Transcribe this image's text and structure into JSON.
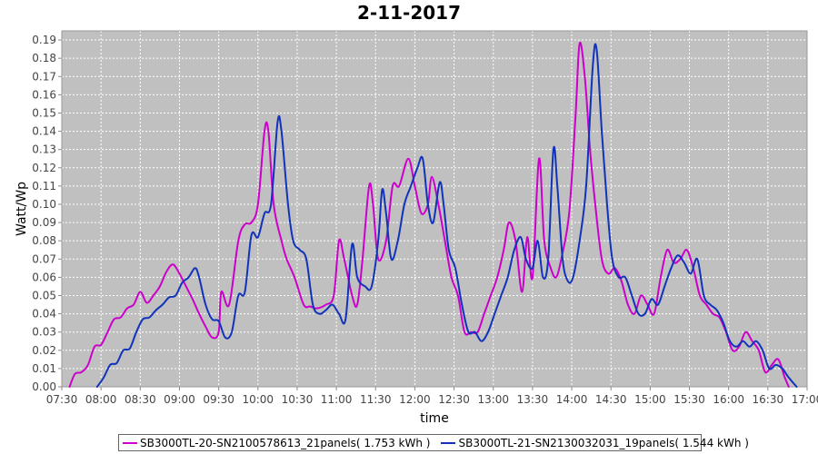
{
  "chart_data": {
    "type": "line",
    "title": "2-11-2017",
    "xlabel": "time",
    "ylabel": "Watt/Wp",
    "xlim": [
      "07:30",
      "17:00"
    ],
    "ylim": [
      0,
      0.195
    ],
    "x_ticks": [
      "07:30",
      "08:00",
      "08:30",
      "09:00",
      "09:30",
      "10:00",
      "10:30",
      "11:00",
      "11:30",
      "12:00",
      "12:30",
      "13:00",
      "13:30",
      "14:00",
      "14:30",
      "15:00",
      "15:30",
      "16:00",
      "16:30",
      "17:00"
    ],
    "y_ticks": [
      0.0,
      0.01,
      0.02,
      0.03,
      0.04,
      0.05,
      0.06,
      0.07,
      0.08,
      0.09,
      0.1,
      0.11,
      0.12,
      0.13,
      0.14,
      0.15,
      0.16,
      0.17,
      0.18,
      0.19
    ],
    "y_tick_labels": [
      "0.00",
      "0.01",
      "0.02",
      "0.03",
      "0.04",
      "0.05",
      "0.06",
      "0.07",
      "0.08",
      "0.09",
      "0.10",
      "0.11",
      "0.12",
      "0.13",
      "0.14",
      "0.15",
      "0.16",
      "0.17",
      "0.18",
      "0.19"
    ],
    "grid": true,
    "legend_position": "bottom",
    "series": [
      {
        "name": "SB3000TL-20-SN2100578613_21panels( 1.753 kWh )",
        "color": "#cc00cc",
        "points": [
          [
            "07:36",
            0.0
          ],
          [
            "07:40",
            0.007
          ],
          [
            "07:45",
            0.008
          ],
          [
            "07:50",
            0.012
          ],
          [
            "07:55",
            0.022
          ],
          [
            "08:00",
            0.023
          ],
          [
            "08:05",
            0.03
          ],
          [
            "08:10",
            0.037
          ],
          [
            "08:15",
            0.038
          ],
          [
            "08:20",
            0.043
          ],
          [
            "08:25",
            0.045
          ],
          [
            "08:30",
            0.052
          ],
          [
            "08:35",
            0.046
          ],
          [
            "08:40",
            0.05
          ],
          [
            "08:45",
            0.055
          ],
          [
            "08:50",
            0.063
          ],
          [
            "08:55",
            0.067
          ],
          [
            "09:00",
            0.062
          ],
          [
            "09:05",
            0.055
          ],
          [
            "09:10",
            0.048
          ],
          [
            "09:15",
            0.04
          ],
          [
            "09:20",
            0.033
          ],
          [
            "09:25",
            0.027
          ],
          [
            "09:30",
            0.03
          ],
          [
            "09:32",
            0.052
          ],
          [
            "09:38",
            0.045
          ],
          [
            "09:45",
            0.08
          ],
          [
            "09:50",
            0.089
          ],
          [
            "09:55",
            0.09
          ],
          [
            "10:00",
            0.1
          ],
          [
            "10:05",
            0.14
          ],
          [
            "10:08",
            0.14
          ],
          [
            "10:12",
            0.1
          ],
          [
            "10:18",
            0.08
          ],
          [
            "10:22",
            0.07
          ],
          [
            "10:28",
            0.06
          ],
          [
            "10:35",
            0.045
          ],
          [
            "10:40",
            0.044
          ],
          [
            "10:45",
            0.043
          ],
          [
            "10:52",
            0.045
          ],
          [
            "10:58",
            0.05
          ],
          [
            "11:02",
            0.08
          ],
          [
            "11:06",
            0.07
          ],
          [
            "11:12",
            0.05
          ],
          [
            "11:16",
            0.045
          ],
          [
            "11:20",
            0.07
          ],
          [
            "11:25",
            0.11
          ],
          [
            "11:28",
            0.1
          ],
          [
            "11:32",
            0.07
          ],
          [
            "11:38",
            0.08
          ],
          [
            "11:43",
            0.11
          ],
          [
            "11:48",
            0.11
          ],
          [
            "11:55",
            0.125
          ],
          [
            "12:00",
            0.11
          ],
          [
            "12:05",
            0.095
          ],
          [
            "12:10",
            0.1
          ],
          [
            "12:13",
            0.115
          ],
          [
            "12:18",
            0.1
          ],
          [
            "12:23",
            0.08
          ],
          [
            "12:28",
            0.06
          ],
          [
            "12:33",
            0.05
          ],
          [
            "12:38",
            0.03
          ],
          [
            "12:43",
            0.03
          ],
          [
            "12:48",
            0.03
          ],
          [
            "12:53",
            0.04
          ],
          [
            "12:58",
            0.05
          ],
          [
            "13:03",
            0.06
          ],
          [
            "13:08",
            0.075
          ],
          [
            "13:12",
            0.09
          ],
          [
            "13:17",
            0.08
          ],
          [
            "13:22",
            0.052
          ],
          [
            "13:26",
            0.082
          ],
          [
            "13:30",
            0.06
          ],
          [
            "13:35",
            0.125
          ],
          [
            "13:39",
            0.08
          ],
          [
            "13:44",
            0.065
          ],
          [
            "13:48",
            0.06
          ],
          [
            "13:52",
            0.07
          ],
          [
            "13:58",
            0.095
          ],
          [
            "14:03",
            0.15
          ],
          [
            "14:06",
            0.188
          ],
          [
            "14:10",
            0.17
          ],
          [
            "14:14",
            0.13
          ],
          [
            "14:18",
            0.1
          ],
          [
            "14:23",
            0.07
          ],
          [
            "14:28",
            0.062
          ],
          [
            "14:33",
            0.065
          ],
          [
            "14:38",
            0.058
          ],
          [
            "14:43",
            0.045
          ],
          [
            "14:48",
            0.04
          ],
          [
            "14:53",
            0.05
          ],
          [
            "14:58",
            0.045
          ],
          [
            "15:03",
            0.04
          ],
          [
            "15:08",
            0.06
          ],
          [
            "15:13",
            0.075
          ],
          [
            "15:18",
            0.068
          ],
          [
            "15:23",
            0.07
          ],
          [
            "15:28",
            0.075
          ],
          [
            "15:33",
            0.065
          ],
          [
            "15:38",
            0.05
          ],
          [
            "15:43",
            0.045
          ],
          [
            "15:48",
            0.04
          ],
          [
            "15:53",
            0.038
          ],
          [
            "15:58",
            0.03
          ],
          [
            "16:03",
            0.02
          ],
          [
            "16:08",
            0.022
          ],
          [
            "16:13",
            0.03
          ],
          [
            "16:18",
            0.025
          ],
          [
            "16:23",
            0.02
          ],
          [
            "16:28",
            0.008
          ],
          [
            "16:33",
            0.012
          ],
          [
            "16:38",
            0.015
          ],
          [
            "16:43",
            0.005
          ],
          [
            "16:46",
            0.0
          ]
        ]
      },
      {
        "name": "SB3000TL-21-SN2130032031_19panels( 1.544 kWh )",
        "color": "#1133bb",
        "points": [
          [
            "07:57",
            0.0
          ],
          [
            "08:02",
            0.005
          ],
          [
            "08:07",
            0.012
          ],
          [
            "08:12",
            0.013
          ],
          [
            "08:17",
            0.02
          ],
          [
            "08:22",
            0.021
          ],
          [
            "08:27",
            0.03
          ],
          [
            "08:32",
            0.037
          ],
          [
            "08:37",
            0.038
          ],
          [
            "08:42",
            0.042
          ],
          [
            "08:47",
            0.045
          ],
          [
            "08:52",
            0.049
          ],
          [
            "08:57",
            0.05
          ],
          [
            "09:02",
            0.057
          ],
          [
            "09:07",
            0.06
          ],
          [
            "09:12",
            0.065
          ],
          [
            "09:15",
            0.06
          ],
          [
            "09:20",
            0.045
          ],
          [
            "09:25",
            0.037
          ],
          [
            "09:30",
            0.036
          ],
          [
            "09:35",
            0.027
          ],
          [
            "09:40",
            0.03
          ],
          [
            "09:45",
            0.05
          ],
          [
            "09:50",
            0.052
          ],
          [
            "09:55",
            0.083
          ],
          [
            "10:00",
            0.082
          ],
          [
            "10:05",
            0.095
          ],
          [
            "10:10",
            0.1
          ],
          [
            "10:15",
            0.145
          ],
          [
            "10:18",
            0.14
          ],
          [
            "10:23",
            0.1
          ],
          [
            "10:27",
            0.08
          ],
          [
            "10:32",
            0.075
          ],
          [
            "10:37",
            0.07
          ],
          [
            "10:42",
            0.045
          ],
          [
            "10:47",
            0.04
          ],
          [
            "10:52",
            0.042
          ],
          [
            "10:57",
            0.045
          ],
          [
            "11:02",
            0.04
          ],
          [
            "11:07",
            0.037
          ],
          [
            "11:12",
            0.078
          ],
          [
            "11:16",
            0.06
          ],
          [
            "11:22",
            0.055
          ],
          [
            "11:27",
            0.055
          ],
          [
            "11:32",
            0.08
          ],
          [
            "11:35",
            0.108
          ],
          [
            "11:38",
            0.095
          ],
          [
            "11:42",
            0.07
          ],
          [
            "11:47",
            0.08
          ],
          [
            "11:52",
            0.1
          ],
          [
            "11:57",
            0.11
          ],
          [
            "12:02",
            0.12
          ],
          [
            "12:06",
            0.125
          ],
          [
            "12:10",
            0.1
          ],
          [
            "12:14",
            0.09
          ],
          [
            "12:19",
            0.112
          ],
          [
            "12:22",
            0.1
          ],
          [
            "12:26",
            0.075
          ],
          [
            "12:31",
            0.065
          ],
          [
            "12:36",
            0.045
          ],
          [
            "12:41",
            0.03
          ],
          [
            "12:46",
            0.03
          ],
          [
            "12:51",
            0.025
          ],
          [
            "12:56",
            0.03
          ],
          [
            "13:01",
            0.04
          ],
          [
            "13:06",
            0.05
          ],
          [
            "13:11",
            0.06
          ],
          [
            "13:16",
            0.075
          ],
          [
            "13:21",
            0.082
          ],
          [
            "13:25",
            0.07
          ],
          [
            "13:30",
            0.065
          ],
          [
            "13:34",
            0.08
          ],
          [
            "13:38",
            0.06
          ],
          [
            "13:42",
            0.07
          ],
          [
            "13:46",
            0.13
          ],
          [
            "13:49",
            0.11
          ],
          [
            "13:53",
            0.07
          ],
          [
            "13:57",
            0.058
          ],
          [
            "14:01",
            0.06
          ],
          [
            "14:06",
            0.08
          ],
          [
            "14:11",
            0.11
          ],
          [
            "14:16",
            0.175
          ],
          [
            "14:19",
            0.185
          ],
          [
            "14:23",
            0.14
          ],
          [
            "14:27",
            0.1
          ],
          [
            "14:31",
            0.07
          ],
          [
            "14:36",
            0.06
          ],
          [
            "14:41",
            0.06
          ],
          [
            "14:46",
            0.05
          ],
          [
            "14:51",
            0.04
          ],
          [
            "14:56",
            0.04
          ],
          [
            "15:01",
            0.048
          ],
          [
            "15:06",
            0.045
          ],
          [
            "15:11",
            0.055
          ],
          [
            "15:16",
            0.065
          ],
          [
            "15:21",
            0.072
          ],
          [
            "15:26",
            0.068
          ],
          [
            "15:31",
            0.062
          ],
          [
            "15:36",
            0.07
          ],
          [
            "15:41",
            0.05
          ],
          [
            "15:46",
            0.045
          ],
          [
            "15:51",
            0.042
          ],
          [
            "15:56",
            0.035
          ],
          [
            "16:01",
            0.025
          ],
          [
            "16:06",
            0.022
          ],
          [
            "16:11",
            0.025
          ],
          [
            "16:16",
            0.022
          ],
          [
            "16:21",
            0.025
          ],
          [
            "16:26",
            0.02
          ],
          [
            "16:31",
            0.01
          ],
          [
            "16:36",
            0.012
          ],
          [
            "16:41",
            0.01
          ],
          [
            "16:46",
            0.005
          ],
          [
            "16:52",
            0.0
          ]
        ]
      }
    ]
  }
}
